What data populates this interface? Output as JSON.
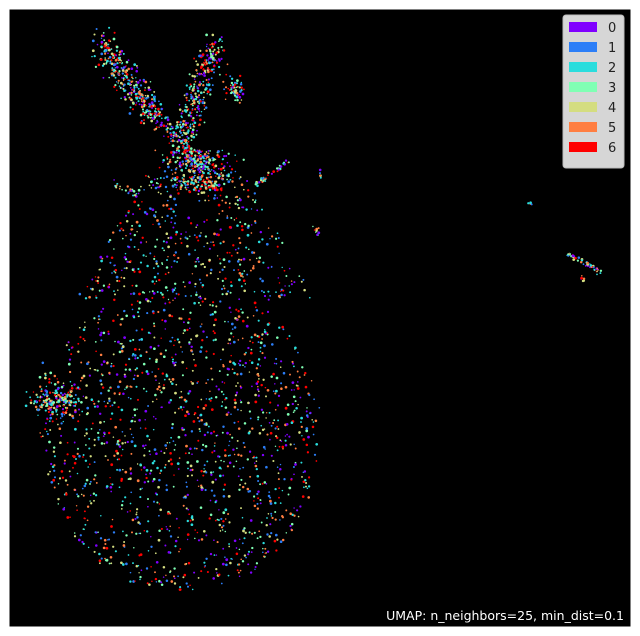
{
  "chart_data": {
    "type": "scatter",
    "title": "",
    "xlabel": "",
    "ylabel": "",
    "grid": false,
    "axes_visible": false,
    "background": "#000000",
    "legend_position": "top-right",
    "annotation": "UMAP: n_neighbors=25, min_dist=0.1",
    "series": [
      {
        "name": "0",
        "color": "#8000ff"
      },
      {
        "name": "1",
        "color": "#2c7ef7"
      },
      {
        "name": "2",
        "color": "#2adddd"
      },
      {
        "name": "3",
        "color": "#80ffb4"
      },
      {
        "name": "4",
        "color": "#d4dd80"
      },
      {
        "name": "5",
        "color": "#ff7e41"
      },
      {
        "name": "6",
        "color": "#ff0000"
      }
    ]
  }
}
